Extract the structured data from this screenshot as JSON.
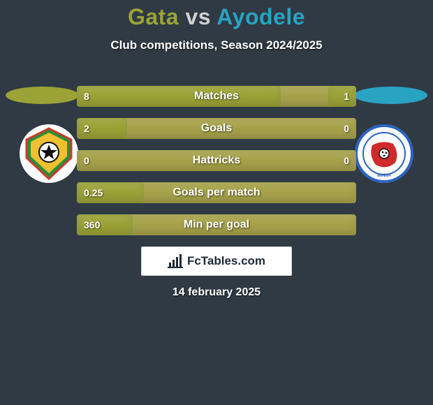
{
  "colors": {
    "background": "#2f3a44",
    "title_p1": "#9aa336",
    "title_vs": "#d0d0d0",
    "title_p2": "#29a3c2",
    "ellipse_left": "#9aa336",
    "ellipse_right": "#29a3c2",
    "bar_bg": "#a7a24a",
    "bar_fill": "#9aa336",
    "white": "#ffffff"
  },
  "title": {
    "p1": "Gata",
    "vs": "vs",
    "p2": "Ayodele"
  },
  "subtitle": "Club competitions, Season 2024/2025",
  "bars": [
    {
      "label": "Matches",
      "left_val": "8",
      "right_val": "1",
      "left_pct": 73,
      "right_pct": 10
    },
    {
      "label": "Goals",
      "left_val": "2",
      "right_val": "0",
      "left_pct": 18,
      "right_pct": 0
    },
    {
      "label": "Hattricks",
      "left_val": "0",
      "right_val": "0",
      "left_pct": 0,
      "right_pct": 0
    },
    {
      "label": "Goals per match",
      "left_val": "0.25",
      "right_val": "",
      "left_pct": 24,
      "right_pct": 0
    },
    {
      "label": "Min per goal",
      "left_val": "360",
      "right_val": "",
      "left_pct": 20,
      "right_pct": 0
    }
  ],
  "brand": "FcTables.com",
  "date": "14 february 2025",
  "logo_left": {
    "ring_colors": [
      "#c93b2a",
      "#2a8f3a",
      "#f0c030"
    ]
  },
  "logo_right": {
    "ring_color": "#2a63c2",
    "shape_color": "#d02a2a"
  }
}
